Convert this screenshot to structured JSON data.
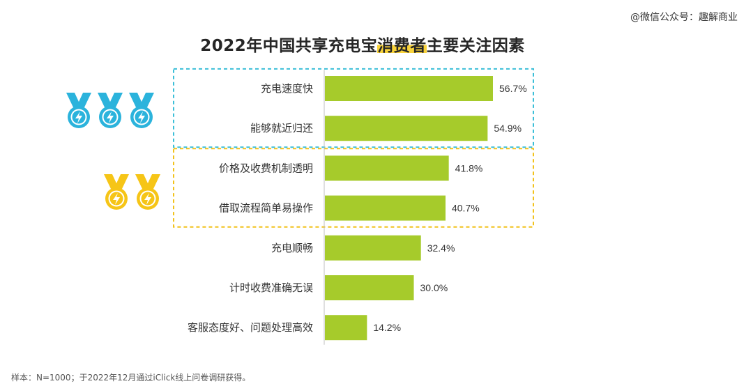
{
  "watermark": "@微信公众号：趣解商业",
  "title": {
    "prefix": "2022年中国共享充电宝",
    "highlight": "消费者",
    "suffix": "主要关注因素"
  },
  "footnote": "样本：N=1000；于2022年12月通过iClick线上问卷调研获得。",
  "colors": {
    "bar": "#a6cb2b",
    "top_group_border": "#3bbfd8",
    "second_group_border": "#f2c21b",
    "medal_blue": "#2bb3dc",
    "medal_gold": "#f6c517",
    "title_highlight": "#f9d33a"
  },
  "medals": {
    "top_group": {
      "count": 3,
      "icon": "medal-lightning-icon",
      "color": "blue"
    },
    "second_group": {
      "count": 2,
      "icon": "medal-lightning-icon",
      "color": "gold"
    }
  },
  "chart_data": {
    "type": "bar",
    "orientation": "horizontal",
    "categories": [
      "充电速度快",
      "能够就近归还",
      "价格及收费机制透明",
      "借取流程简单易操作",
      "充电顺畅",
      "计时收费准确无误",
      "客服态度好、问题处理高效"
    ],
    "values": [
      56.7,
      54.9,
      41.8,
      40.7,
      32.4,
      30.0,
      14.2
    ],
    "value_labels": [
      "56.7%",
      "54.9%",
      "41.8%",
      "40.7%",
      "32.4%",
      "30.0%",
      "14.2%"
    ],
    "title": "2022年中国共享充电宝消费者主要关注因素",
    "xlabel": "",
    "ylabel": "",
    "xlim": [
      0,
      60
    ],
    "grid": false,
    "legend": "none",
    "groups": [
      {
        "categories": [
          "充电速度快",
          "能够就近归还"
        ],
        "style": "dashed-blue"
      },
      {
        "categories": [
          "价格及收费机制透明",
          "借取流程简单易操作"
        ],
        "style": "dashed-gold"
      }
    ]
  }
}
